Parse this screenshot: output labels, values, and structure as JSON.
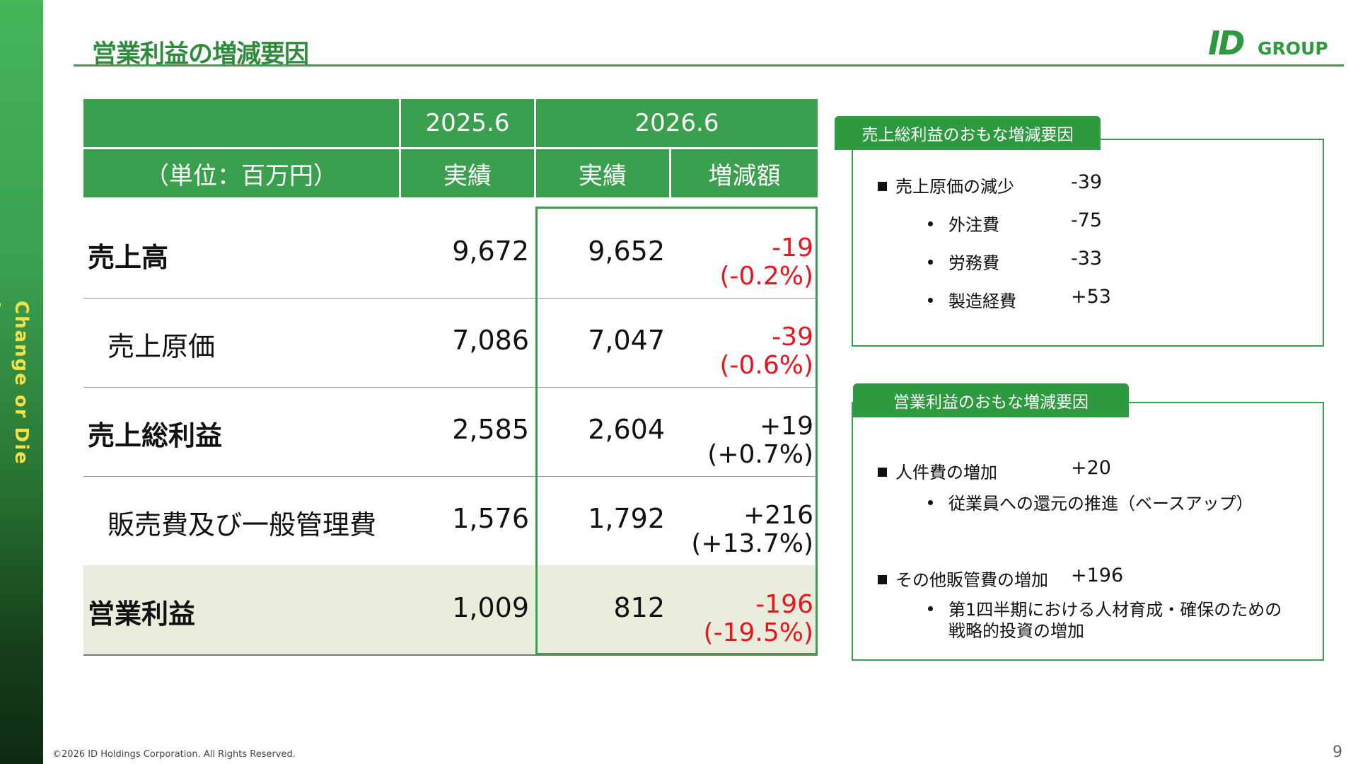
{
  "side_slogan": "Change or Die !",
  "title": "営業利益の増減要因",
  "logo": {
    "mark": "ID",
    "text": "GROUP"
  },
  "table": {
    "unit_label": "（単位：百万円）",
    "year_prev": "2025.6",
    "year_curr": "2026.6",
    "col_actual_prev": "実績",
    "col_actual_curr": "実績",
    "col_change": "増減額",
    "rows": [
      {
        "label": "売上高",
        "prev": "9,672",
        "curr": "9,652",
        "change": "-19",
        "pct": "(-0.2%)"
      },
      {
        "label": "売上原価",
        "prev": "7,086",
        "curr": "7,047",
        "change": "-39",
        "pct": "(-0.6%)"
      },
      {
        "label": "売上総利益",
        "prev": "2,585",
        "curr": "2,604",
        "change": "+19",
        "pct": "(+0.7%)"
      },
      {
        "label": "販売費及び一般管理費",
        "prev": "1,576",
        "curr": "1,792",
        "change": "+216",
        "pct": "(+13.7%)"
      },
      {
        "label": "営業利益",
        "prev": "1,009",
        "curr": "812",
        "change": "-196",
        "pct": "(-19.5%)"
      }
    ]
  },
  "gross_box": {
    "tab": "売上総利益のおもな増減要因",
    "main": {
      "label": "売上原価の減少",
      "value": "-39"
    },
    "subs": [
      {
        "label": "外注費",
        "value": "-75"
      },
      {
        "label": "労務費",
        "value": "-33"
      },
      {
        "label": "製造経費",
        "value": "+53"
      }
    ]
  },
  "op_box": {
    "tab": "営業利益のおもな増減要因",
    "item1": {
      "label": "人件費の増加",
      "value": "+20",
      "sub": "従業員への還元の推進（ベースアップ）"
    },
    "item2": {
      "label": "その他販管費の増加",
      "value": "+196",
      "sub_line1": "第1四半期における人材育成・確保のための",
      "sub_line2": "戦略的投資の増加"
    }
  },
  "footer": "©2026 ID Holdings Corporation. All Rights Reserved.",
  "page_number": "9",
  "colors": {
    "brand_green": "#3aa04e",
    "negative_red": "#e8141e",
    "highlight_bg": "#e9eedc"
  }
}
